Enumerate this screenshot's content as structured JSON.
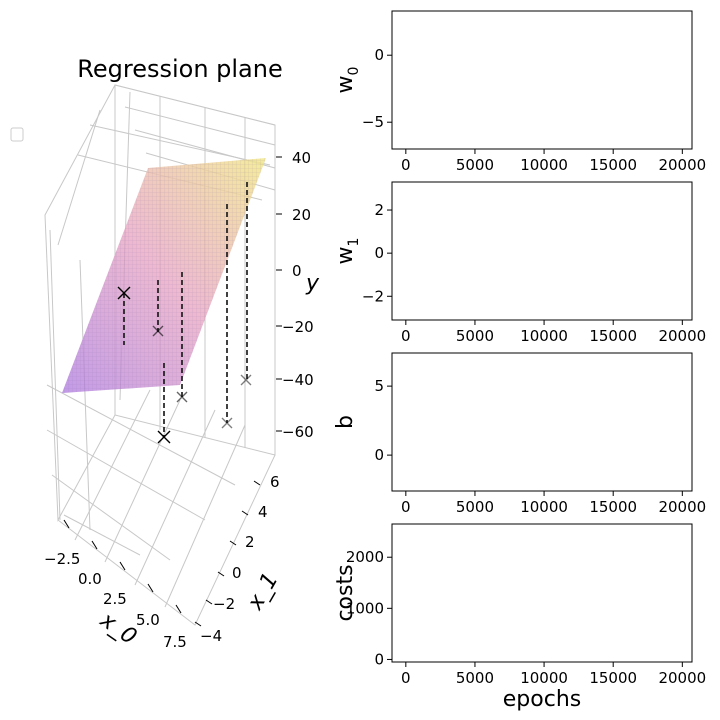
{
  "chart_data": [
    {
      "type": "scatter",
      "title": "Regression plane",
      "xlabel": "x_0",
      "ylabel": "x_1",
      "zlabel": "y",
      "x0_ticks": [
        "−2.5",
        "0.0",
        "2.5",
        "5.0",
        "7.5"
      ],
      "x1_ticks": [
        "−4",
        "−2",
        "0",
        "2",
        "4",
        "6"
      ],
      "y_ticks": [
        "40",
        "20",
        "0",
        "−20",
        "−40",
        "−60"
      ],
      "legend": "empty",
      "plane_colors": [
        "#b07ee0",
        "#f2e98a"
      ],
      "points": 8
    },
    {
      "type": "line",
      "ylabel": "w",
      "ylabel_sub": "0",
      "ylim": [
        -7,
        3.3
      ],
      "yticks": [
        "0",
        "−5"
      ],
      "xticks": [
        "0",
        "5000",
        "10000",
        "15000",
        "20000"
      ]
    },
    {
      "type": "line",
      "ylabel": "w",
      "ylabel_sub": "1",
      "ylim": [
        -3.1,
        3.3
      ],
      "yticks": [
        "2",
        "0",
        "−2"
      ],
      "xticks": [
        "0",
        "5000",
        "10000",
        "15000",
        "20000"
      ]
    },
    {
      "type": "line",
      "ylabel": "b",
      "ylim": [
        -2.6,
        7.4
      ],
      "yticks": [
        "5",
        "0"
      ],
      "xticks": [
        "0",
        "5000",
        "10000",
        "15000",
        "20000"
      ]
    },
    {
      "type": "line",
      "ylabel": "costs",
      "xlabel": "epochs",
      "ylim": [
        -50,
        2650
      ],
      "yticks": [
        "2000",
        "1000",
        "0"
      ],
      "xticks": [
        "0",
        "5000",
        "10000",
        "15000",
        "20000"
      ]
    }
  ]
}
